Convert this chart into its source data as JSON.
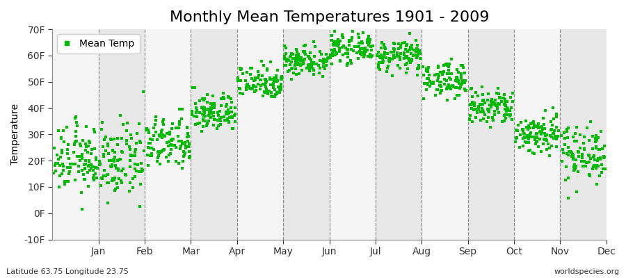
{
  "title": "Monthly Mean Temperatures 1901 - 2009",
  "ylabel": "Temperature",
  "subtitle_left": "Latitude 63.75 Longitude 23.75",
  "subtitle_right": "worldspecies.org",
  "dot_color": "#00bb00",
  "legend_label": "Mean Temp",
  "ylim": [
    -10,
    70
  ],
  "yticks": [
    -10,
    0,
    10,
    20,
    30,
    40,
    50,
    60,
    70
  ],
  "ytick_labels": [
    "-10F",
    "0F",
    "10F",
    "20F",
    "30F",
    "40F",
    "50F",
    "60F",
    "70F"
  ],
  "months": [
    "Jan",
    "Feb",
    "Mar",
    "Apr",
    "May",
    "Jun",
    "Jul",
    "Aug",
    "Sep",
    "Oct",
    "Nov",
    "Dec"
  ],
  "month_means_C": [
    -6.5,
    -7.0,
    -3.0,
    3.5,
    10.0,
    14.5,
    17.0,
    15.5,
    10.5,
    4.5,
    -1.0,
    -5.0
  ],
  "month_stds_C": [
    3.5,
    3.8,
    2.8,
    2.0,
    1.8,
    1.6,
    1.4,
    1.6,
    1.8,
    2.0,
    2.2,
    3.0
  ],
  "n_years": 109,
  "bg_color_light": "#f5f5f5",
  "bg_color_dark": "#e8e8e8",
  "grid_color": "#666666",
  "title_fontsize": 16,
  "axis_fontsize": 10,
  "tick_fontsize": 10,
  "dot_size": 7,
  "dot_alpha": 1.0
}
